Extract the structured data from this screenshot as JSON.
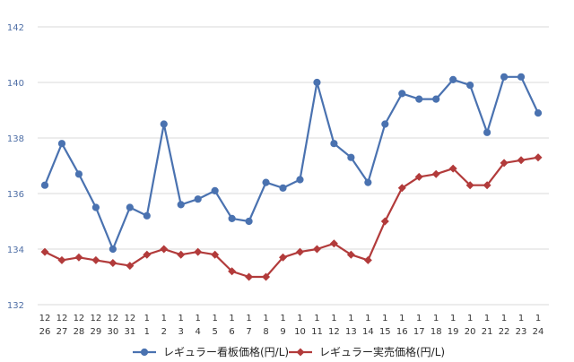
{
  "chart_data": {
    "type": "line",
    "title": "",
    "xlabel": "",
    "ylabel": "",
    "ylim": [
      132,
      142
    ],
    "yticks": [
      132,
      134,
      136,
      138,
      140,
      142
    ],
    "grid": true,
    "legend_position": "bottom",
    "categories": [
      {
        "month": "12",
        "day": "26"
      },
      {
        "month": "12",
        "day": "27"
      },
      {
        "month": "12",
        "day": "28"
      },
      {
        "month": "12",
        "day": "29"
      },
      {
        "month": "12",
        "day": "30"
      },
      {
        "month": "12",
        "day": "31"
      },
      {
        "month": "1",
        "day": "1"
      },
      {
        "month": "1",
        "day": "2"
      },
      {
        "month": "1",
        "day": "3"
      },
      {
        "month": "1",
        "day": "4"
      },
      {
        "month": "1",
        "day": "5"
      },
      {
        "month": "1",
        "day": "6"
      },
      {
        "month": "1",
        "day": "7"
      },
      {
        "month": "1",
        "day": "8"
      },
      {
        "month": "1",
        "day": "9"
      },
      {
        "month": "1",
        "day": "10"
      },
      {
        "month": "1",
        "day": "11"
      },
      {
        "month": "1",
        "day": "12"
      },
      {
        "month": "1",
        "day": "13"
      },
      {
        "month": "1",
        "day": "14"
      },
      {
        "month": "1",
        "day": "15"
      },
      {
        "month": "1",
        "day": "16"
      },
      {
        "month": "1",
        "day": "17"
      },
      {
        "month": "1",
        "day": "18"
      },
      {
        "month": "1",
        "day": "19"
      },
      {
        "month": "1",
        "day": "20"
      },
      {
        "month": "1",
        "day": "21"
      },
      {
        "month": "1",
        "day": "22"
      },
      {
        "month": "1",
        "day": "23"
      },
      {
        "month": "1",
        "day": "24"
      }
    ],
    "series": [
      {
        "name": "レギュラー看板価格(円/L)",
        "color": "#4a72b0",
        "marker": "circle",
        "values": [
          136.3,
          137.8,
          136.7,
          135.5,
          134.0,
          135.5,
          135.2,
          138.5,
          135.6,
          135.8,
          136.1,
          135.1,
          135.0,
          136.4,
          136.2,
          136.5,
          140.0,
          137.8,
          137.3,
          136.4,
          138.5,
          139.6,
          139.4,
          139.4,
          140.1,
          139.9,
          138.2,
          140.2,
          140.2,
          138.9
        ]
      },
      {
        "name": "レギュラー実売価格(円/L)",
        "color": "#b23b3b",
        "marker": "diamond",
        "values": [
          133.9,
          133.6,
          133.7,
          133.6,
          133.5,
          133.4,
          133.8,
          134.0,
          133.8,
          133.9,
          133.8,
          133.2,
          133.0,
          133.0,
          133.7,
          133.9,
          134.0,
          134.2,
          133.8,
          133.6,
          135.0,
          136.2,
          136.6,
          136.7,
          136.9,
          136.3,
          136.3,
          137.1,
          137.2,
          137.3
        ]
      }
    ]
  }
}
